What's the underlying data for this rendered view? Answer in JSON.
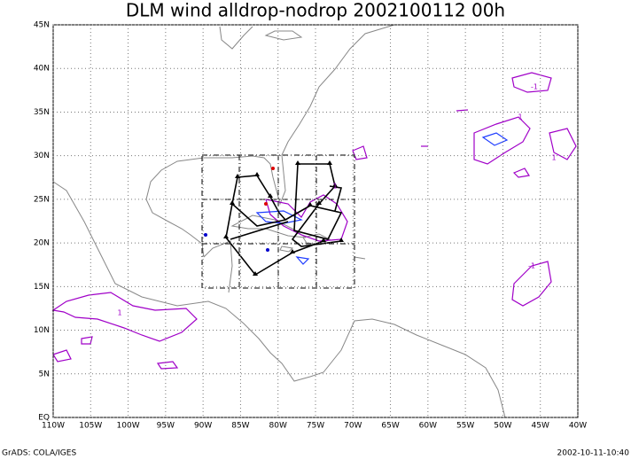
{
  "map": {
    "title": "DLM wind alldrop-nodrop 2002100112 00h",
    "xlim": [
      -110,
      -40
    ],
    "ylim": [
      0,
      45
    ],
    "xticks": [
      {
        "value": -110,
        "label": "110W"
      },
      {
        "value": -105,
        "label": "105W"
      },
      {
        "value": -100,
        "label": "100W"
      },
      {
        "value": -95,
        "label": "95W"
      },
      {
        "value": -90,
        "label": "90W"
      },
      {
        "value": -85,
        "label": "85W"
      },
      {
        "value": -80,
        "label": "80W"
      },
      {
        "value": -75,
        "label": "75W"
      },
      {
        "value": -70,
        "label": "70W"
      },
      {
        "value": -65,
        "label": "65W"
      },
      {
        "value": -60,
        "label": "60W"
      },
      {
        "value": -55,
        "label": "55W"
      },
      {
        "value": -50,
        "label": "50W"
      },
      {
        "value": -45,
        "label": "45W"
      },
      {
        "value": -40,
        "label": "40W"
      }
    ],
    "yticks": [
      {
        "value": 0,
        "label": "EQ"
      },
      {
        "value": 5,
        "label": "5N"
      },
      {
        "value": 10,
        "label": "10N"
      },
      {
        "value": 15,
        "label": "15N"
      },
      {
        "value": 20,
        "label": "20N"
      },
      {
        "value": 25,
        "label": "25N"
      },
      {
        "value": 30,
        "label": "30N"
      },
      {
        "value": 35,
        "label": "35N"
      },
      {
        "value": 40,
        "label": "40N"
      },
      {
        "value": 45,
        "label": "45N"
      }
    ],
    "contour_labels": [
      "1",
      "-1",
      "1",
      "1",
      "-1",
      "1"
    ]
  },
  "footer_left": "GrADS: COLA/IGES",
  "footer_right": "2002-10-11-10:40"
}
